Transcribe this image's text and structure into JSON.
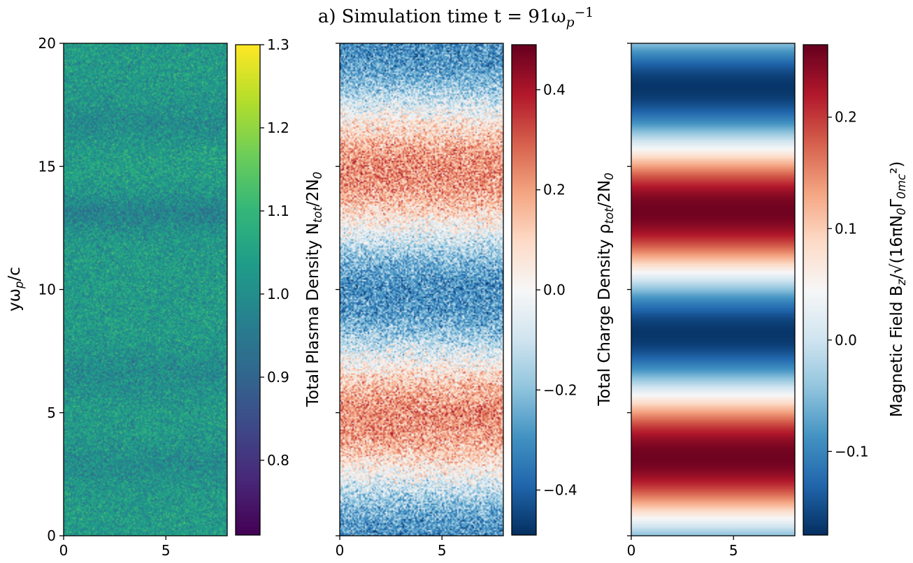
{
  "chart_data": {
    "type": "heatmap",
    "title": "a) Simulation time t = 91ω_p^−1",
    "panels": [
      {
        "name": "density",
        "colormap": "viridis",
        "field_profile": "noisy density with depletion bands (lower values near y≈13, 16.5, 6.5, 3)",
        "colorbar_label": "Total Plasma Density N_tot/2N_0",
        "colorbar_range": [
          0.71,
          1.3
        ],
        "colorbar_ticks": [
          0.8,
          0.9,
          1.0,
          1.1,
          1.2,
          1.3
        ],
        "xlim": [
          0,
          8
        ],
        "ylim": [
          0,
          20
        ],
        "xticks": [
          0,
          5
        ],
        "yticks": [
          0,
          5,
          10,
          15,
          20
        ],
        "ylabel": "yω_p/c"
      },
      {
        "name": "charge",
        "colormap": "RdBu_r",
        "field_profile": "noisy charge density; positive bands near y≈14.8 and 4.8, negative near y≈12 and 1.8",
        "colorbar_label": "Total Charge Density ρ_tot/2N_0",
        "colorbar_range": [
          -0.49,
          0.49
        ],
        "colorbar_ticks": [
          -0.4,
          -0.2,
          0.0,
          0.2,
          0.4
        ],
        "xlim": [
          0,
          8
        ],
        "ylim": [
          0,
          20
        ],
        "xticks": [
          0,
          5
        ],
        "yticks": [
          0,
          5,
          10,
          15,
          20
        ]
      },
      {
        "name": "magnetic",
        "colormap": "RdBu_r",
        "field_profile": "smooth standing-wave magnetic field; maxima near y≈13.2 and 3.2, minima near y≈16.6 and 6.6",
        "colorbar_label": "Magnetic Field B_z/√(16πN_0Γ_0mc²)",
        "colorbar_range": [
          -0.175,
          0.265
        ],
        "colorbar_ticks": [
          -0.1,
          0.0,
          0.1,
          0.2
        ],
        "xlim": [
          0,
          8
        ],
        "ylim": [
          0,
          20
        ],
        "xticks": [
          0,
          5
        ],
        "yticks": [
          0,
          5,
          10,
          15,
          20
        ]
      }
    ]
  },
  "colors": {
    "viridis": [
      "#440154",
      "#482878",
      "#3e4a89",
      "#31688e",
      "#26828e",
      "#1f9e89",
      "#35b779",
      "#6ece58",
      "#b5de2b",
      "#fde725"
    ],
    "rdbu_r": [
      "#053061",
      "#2166ac",
      "#4393c3",
      "#92c5de",
      "#d1e5f0",
      "#f7f7f7",
      "#fddbc7",
      "#f4a582",
      "#d6604d",
      "#b2182b",
      "#67001f"
    ]
  }
}
